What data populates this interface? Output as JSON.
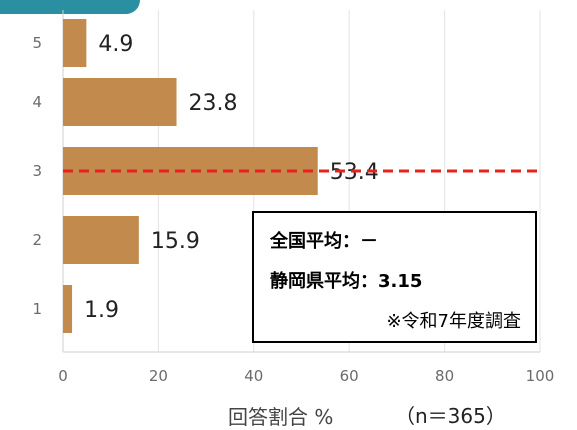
{
  "chart_data": {
    "type": "bar",
    "orientation": "horizontal",
    "categories": [
      "5",
      "4",
      "3",
      "2",
      "1"
    ],
    "values": [
      4.9,
      23.8,
      53.4,
      15.9,
      1.9
    ],
    "value_labels": [
      "4.9",
      "23.8",
      "53.4",
      "15.9",
      "1.9"
    ],
    "xlim": [
      0,
      100
    ],
    "xticks": [
      0,
      20,
      40,
      60,
      80,
      100
    ],
    "xticks_labels": [
      "0",
      "20",
      "40",
      "60",
      "80",
      "100"
    ],
    "xlabel": "回答割合 %",
    "n_note": "（n＝365）",
    "grid": true,
    "reference_line": {
      "category": "3",
      "style": "dashed"
    },
    "annotation": {
      "national": "全国平均：－",
      "prefecture": "静岡県平均：3.15",
      "survey": "※令和7年度調査"
    },
    "colors": {
      "bar": "#c28a4d",
      "reference_line": "#e8201e",
      "grid": "#e3e3e3",
      "header_tab": "#2a8fa0"
    }
  }
}
